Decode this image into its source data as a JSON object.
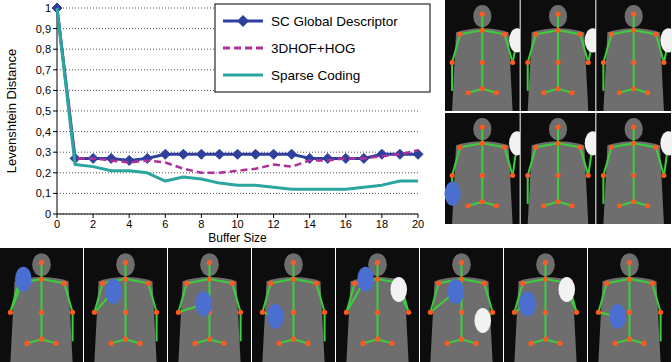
{
  "chart_data": {
    "type": "line",
    "x_label": "Buffer Size",
    "y_label": "Levenshtein Distance",
    "x": [
      0,
      1,
      2,
      3,
      4,
      5,
      6,
      7,
      8,
      9,
      10,
      11,
      12,
      13,
      14,
      15,
      16,
      17,
      18,
      19,
      20
    ],
    "series": [
      {
        "name": "SC Global Descriptor",
        "color": "#2e3f9e",
        "marker": "diamond",
        "line_style": "solid",
        "values": [
          1,
          0.27,
          0.27,
          0.27,
          0.26,
          0.27,
          0.29,
          0.29,
          0.29,
          0.29,
          0.29,
          0.29,
          0.29,
          0.29,
          0.27,
          0.27,
          0.27,
          0.27,
          0.29,
          0.29,
          0.29
        ]
      },
      {
        "name": "3DHOF+HOG",
        "color": "#b0309a",
        "marker": "none",
        "line_style": "dashed",
        "values": [
          1,
          0.27,
          0.27,
          0.26,
          0.25,
          0.26,
          0.25,
          0.22,
          0.2,
          0.2,
          0.21,
          0.22,
          0.24,
          0.23,
          0.26,
          0.26,
          0.27,
          0.27,
          0.28,
          0.29,
          0.31
        ]
      },
      {
        "name": "Sparse Coding",
        "color": "#2aa5a0",
        "marker": "none",
        "line_style": "solid",
        "values": [
          1,
          0.24,
          0.23,
          0.21,
          0.21,
          0.2,
          0.16,
          0.18,
          0.17,
          0.15,
          0.14,
          0.14,
          0.13,
          0.12,
          0.12,
          0.12,
          0.12,
          0.13,
          0.14,
          0.16,
          0.16
        ]
      }
    ],
    "xlim": [
      0,
      20
    ],
    "xticks": [
      0,
      2,
      4,
      6,
      8,
      10,
      12,
      14,
      16,
      18,
      20
    ],
    "ylim": [
      0,
      1
    ],
    "yticks": [
      0,
      {
        "value": 0.1,
        "label": "0,1"
      },
      {
        "value": 0.2,
        "label": "0,2"
      },
      {
        "value": 0.3,
        "label": "0,3"
      },
      {
        "value": 0.4,
        "label": "0,4"
      },
      {
        "value": 0.5,
        "label": "0,5"
      },
      {
        "value": 0.6,
        "label": "0,6"
      },
      {
        "value": 0.7,
        "label": "0,7"
      },
      {
        "value": 0.8,
        "label": "0,8"
      },
      {
        "value": 0.9,
        "label": "0,9"
      },
      1
    ],
    "grid": true,
    "legend": "top-right"
  }
}
